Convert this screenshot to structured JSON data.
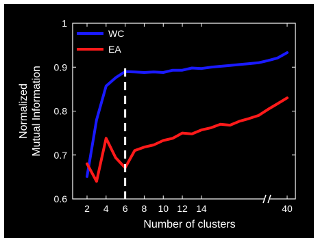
{
  "chart_data": {
    "type": "line",
    "title": "",
    "xlabel": "Number of clusters",
    "ylabel_line1": "Normalized",
    "ylabel_line2": "Mutual Information",
    "ylim": [
      0.6,
      1.0
    ],
    "y_ticks": [
      "0.6",
      "0.7",
      "0.8",
      "0.9",
      "1"
    ],
    "y_tick_values": [
      0.6,
      0.7,
      0.8,
      0.9,
      1.0
    ],
    "x_ticks": [
      "2",
      "6",
      "10",
      "14",
      "40"
    ],
    "x_ticks_minor": [
      "4",
      "8",
      "12"
    ],
    "x_axis_break": true,
    "vertical_marker": {
      "x": 6,
      "style": "dashed",
      "color": "#ffffff"
    },
    "legend_position": "top-left",
    "x": [
      2,
      3,
      4,
      5,
      6,
      7,
      8,
      9,
      10,
      11,
      12,
      13,
      14,
      15,
      16,
      17,
      18,
      19,
      20,
      21,
      22,
      23
    ],
    "series": [
      {
        "name": "WC",
        "color": "#1a1aff",
        "values": [
          0.651,
          0.78,
          0.857,
          0.876,
          0.89,
          0.889,
          0.888,
          0.889,
          0.888,
          0.893,
          0.893,
          0.898,
          0.897,
          0.9,
          0.902,
          0.904,
          0.906,
          0.908,
          0.91,
          0.915,
          0.921,
          0.933
        ]
      },
      {
        "name": "EA",
        "color": "#ff1a1a",
        "values": [
          0.68,
          0.64,
          0.738,
          0.694,
          0.671,
          0.71,
          0.718,
          0.723,
          0.733,
          0.738,
          0.75,
          0.748,
          0.757,
          0.762,
          0.77,
          0.768,
          0.777,
          0.783,
          0.79,
          0.804,
          0.817,
          0.83
        ]
      }
    ]
  }
}
